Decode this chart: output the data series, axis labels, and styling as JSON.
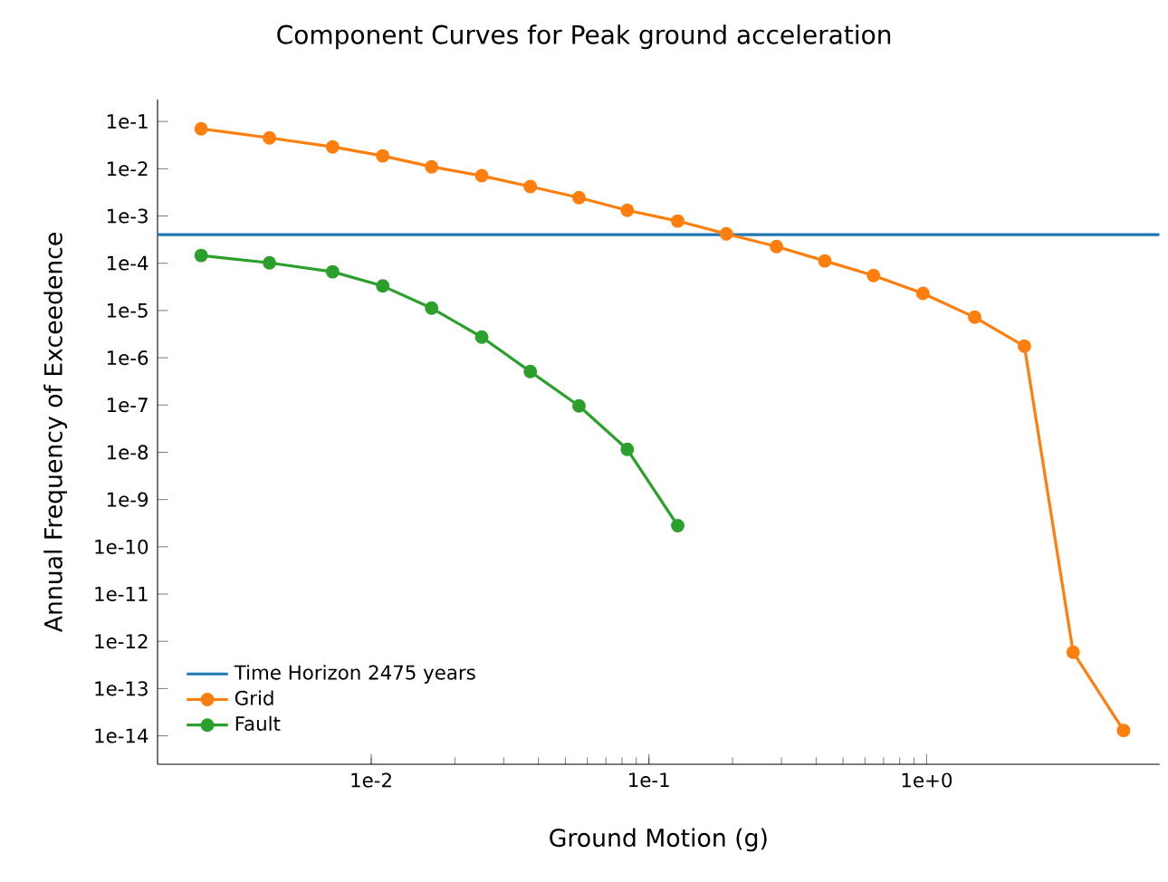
{
  "chart_data": {
    "type": "line",
    "title": "Component Curves for Peak ground acceleration",
    "xlabel": "Ground Motion (g)",
    "ylabel": "Annual Frequency of Exceedence",
    "log": "xy",
    "marker": "circle",
    "line_style": "solid",
    "legend": "bottom left",
    "xlim": [
      0.0017,
      6.9
    ],
    "ylim": [
      2.5e-15,
      0.29
    ],
    "xticks": [
      {
        "value": 0.01,
        "label": "1e-2"
      },
      {
        "value": 0.1,
        "label": "1e-1"
      },
      {
        "value": 1,
        "label": "1e+0"
      }
    ],
    "yticks": [
      {
        "value": 1e-14,
        "label": "1e-14"
      },
      {
        "value": 1e-13,
        "label": "1e-13"
      },
      {
        "value": 1e-12,
        "label": "1e-12"
      },
      {
        "value": 1e-11,
        "label": "1e-11"
      },
      {
        "value": 1e-10,
        "label": "1e-10"
      },
      {
        "value": 1e-09,
        "label": "1e-9"
      },
      {
        "value": 1e-08,
        "label": "1e-8"
      },
      {
        "value": 1e-07,
        "label": "1e-7"
      },
      {
        "value": 1e-06,
        "label": "1e-6"
      },
      {
        "value": 1e-05,
        "label": "1e-5"
      },
      {
        "value": 0.0001,
        "label": "1e-4"
      },
      {
        "value": 0.001,
        "label": "1e-3"
      },
      {
        "value": 0.01,
        "label": "1e-2"
      },
      {
        "value": 0.1,
        "label": "1e-1"
      }
    ],
    "ref_lines": [
      {
        "axis": "y",
        "value": 0.000404,
        "label": "Time Horizon 2475 years",
        "color": "#1f77b4"
      }
    ],
    "series": [
      {
        "name": "Grid",
        "color": "#ff7f0e",
        "x": [
          0.00244,
          0.0043,
          0.00726,
          0.011,
          0.0165,
          0.025,
          0.0374,
          0.056,
          0.0836,
          0.127,
          0.19,
          0.288,
          0.43,
          0.644,
          0.97,
          1.49,
          2.25,
          3.37,
          5.12
        ],
        "values": [
          0.07,
          0.045,
          0.029,
          0.0187,
          0.011,
          0.0071,
          0.0042,
          0.00245,
          0.00132,
          0.00078,
          0.00042,
          0.000226,
          0.000112,
          5.5e-05,
          2.3e-05,
          7.2e-06,
          1.76e-06,
          5.9e-13,
          1.3e-14
        ]
      },
      {
        "name": "Fault",
        "color": "#2ca02c",
        "x": [
          0.00244,
          0.0043,
          0.00726,
          0.011,
          0.0165,
          0.025,
          0.0374,
          0.056,
          0.0836,
          0.127
        ],
        "values": [
          0.000146,
          0.000102,
          6.6e-05,
          3.3e-05,
          1.12e-05,
          2.74e-06,
          5.1e-07,
          9.6e-08,
          1.15e-08,
          2.8e-10
        ]
      }
    ]
  }
}
